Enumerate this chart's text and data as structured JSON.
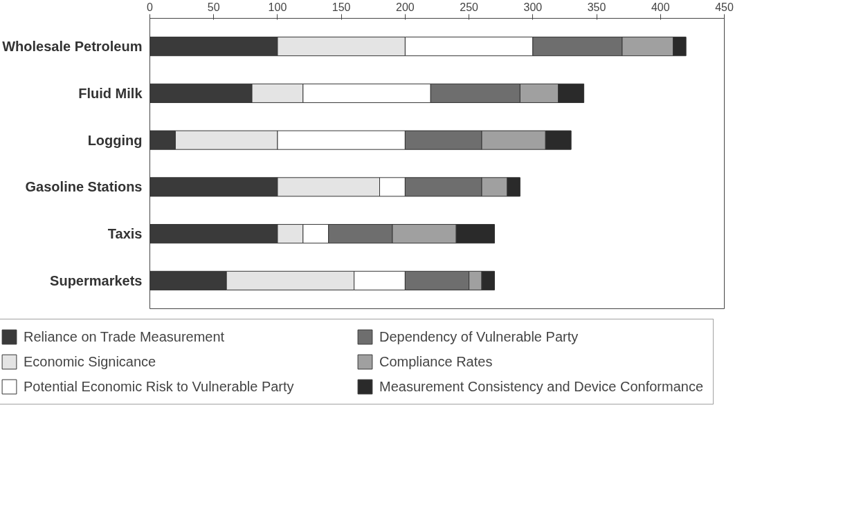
{
  "chart_data": {
    "type": "bar",
    "orientation": "horizontal",
    "stacked": true,
    "categories": [
      "Wholesale Petroleum",
      "Fluid Milk",
      "Logging",
      "Gasoline Stations",
      "Taxis",
      "Supermarkets"
    ],
    "series": [
      {
        "name": "Reliance on Trade Measurement",
        "color": "#3a3a3a",
        "values": [
          100,
          80,
          20,
          100,
          100,
          60
        ]
      },
      {
        "name": "Economic Signicance",
        "color": "#e4e4e4",
        "values": [
          100,
          40,
          80,
          80,
          20,
          100
        ]
      },
      {
        "name": "Potential Economic Risk to Vulnerable Party",
        "color": "#ffffff",
        "values": [
          100,
          100,
          100,
          20,
          20,
          40
        ]
      },
      {
        "name": "Dependency of Vulnerable Party",
        "color": "#6e6e6e",
        "values": [
          70,
          70,
          60,
          60,
          50,
          50
        ]
      },
      {
        "name": "Compliance Rates",
        "color": "#a0a0a0",
        "values": [
          40,
          30,
          50,
          20,
          50,
          10
        ]
      },
      {
        "name": "Measurement Consistency and Device Conformance",
        "color": "#2a2a2a",
        "values": [
          10,
          20,
          20,
          10,
          30,
          10
        ]
      }
    ],
    "xlim": [
      0,
      450
    ],
    "xticks": [
      0,
      50,
      100,
      150,
      200,
      250,
      300,
      350,
      400,
      450
    ],
    "grid": false,
    "legend": "bottom"
  }
}
